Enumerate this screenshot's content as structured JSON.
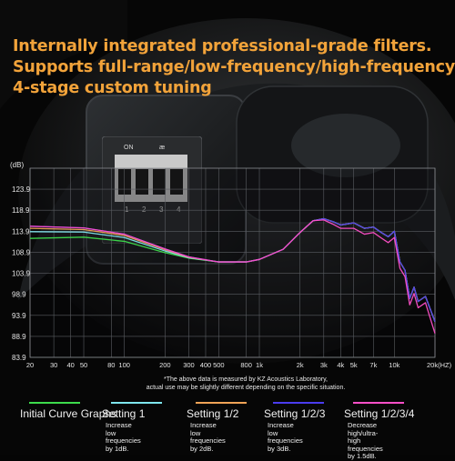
{
  "headline": {
    "line1": "Internally integrated professional-grade filters.",
    "line2": "Supports full-range/low-frequency/high-frequency",
    "line3": "4-stage custom tuning"
  },
  "switch_panel": {
    "on_label": "ON",
    "brand_mark": "æ",
    "numbers": [
      "1",
      "2",
      "3",
      "4"
    ]
  },
  "colors": {
    "headline": "#f2a33a",
    "initial": "#3ddc4c",
    "setting1": "#7ee6ee",
    "setting12": "#f0a356",
    "setting123": "#4a3cf0",
    "setting1234": "#ff4fc8"
  },
  "chart_data": {
    "type": "line",
    "x_scale": "log",
    "xlim": [
      20,
      20000
    ],
    "ylim": [
      83.9,
      128.9
    ],
    "ylabel": "(dB)",
    "y_ticks": [
      "123.9",
      "118.9",
      "113.9",
      "108.9",
      "103.9",
      "98.9",
      "93.9",
      "88.9",
      "83.9"
    ],
    "x_ticks": [
      {
        "v": 20,
        "l": "20"
      },
      {
        "v": 30,
        "l": "30"
      },
      {
        "v": 40,
        "l": "40"
      },
      {
        "v": 50,
        "l": "50"
      },
      {
        "v": 80,
        "l": "80"
      },
      {
        "v": 100,
        "l": "100"
      },
      {
        "v": 200,
        "l": "200"
      },
      {
        "v": 300,
        "l": "300"
      },
      {
        "v": 400,
        "l": "400"
      },
      {
        "v": 500,
        "l": "500"
      },
      {
        "v": 800,
        "l": "800"
      },
      {
        "v": 1000,
        "l": "1k"
      },
      {
        "v": 2000,
        "l": "2k"
      },
      {
        "v": 3000,
        "l": "3k"
      },
      {
        "v": 4000,
        "l": "4k"
      },
      {
        "v": 5000,
        "l": "5k"
      },
      {
        "v": 7000,
        "l": "7k"
      },
      {
        "v": 10000,
        "l": "10k"
      },
      {
        "v": 20000,
        "l": "20k(HZ)"
      }
    ],
    "grid": true,
    "x": [
      20,
      50,
      100,
      200,
      300,
      500,
      800,
      1000,
      1500,
      2000,
      2500,
      3000,
      3500,
      4000,
      5000,
      6000,
      7000,
      8000,
      9000,
      10000,
      11000,
      12000,
      13000,
      14000,
      15000,
      17000,
      20000
    ],
    "series": [
      {
        "name": "Initial Curve Graphs",
        "color": "#3ddc4c",
        "values": [
          112.2,
          112.5,
          111.5,
          108.8,
          107.5,
          106.6,
          106.6,
          107.2,
          109.6,
          113.6,
          116.4,
          116.9,
          116.2,
          115.4,
          115.9,
          114.6,
          114.9,
          113.6,
          112.6,
          113.9,
          106.6,
          104.6,
          97.9,
          100.6,
          97.2,
          98.4,
          92.4
        ]
      },
      {
        "name": "Setting 1",
        "color": "#7ee6ee",
        "values": [
          113.8,
          113.7,
          112.4,
          109.2,
          107.6,
          106.6,
          106.6,
          107.2,
          109.6,
          113.6,
          116.4,
          116.9,
          116.2,
          115.4,
          115.9,
          114.6,
          114.9,
          113.6,
          112.6,
          113.9,
          106.6,
          104.6,
          97.9,
          100.6,
          97.2,
          98.4,
          92.4
        ]
      },
      {
        "name": "Setting 1/2",
        "color": "#f0a356",
        "values": [
          114.6,
          114.3,
          112.9,
          109.5,
          107.7,
          106.6,
          106.6,
          107.2,
          109.6,
          113.6,
          116.4,
          116.9,
          116.2,
          115.4,
          115.9,
          114.6,
          114.9,
          113.6,
          112.6,
          113.9,
          106.6,
          104.6,
          97.9,
          100.6,
          97.2,
          98.4,
          92.4
        ]
      },
      {
        "name": "Setting 1/2/3",
        "color": "#4a3cf0",
        "values": [
          115.1,
          114.7,
          113.2,
          109.7,
          107.8,
          106.6,
          106.6,
          107.2,
          109.6,
          113.6,
          116.4,
          116.9,
          116.2,
          115.4,
          115.9,
          114.6,
          114.9,
          113.6,
          112.6,
          113.9,
          106.6,
          104.6,
          97.9,
          100.6,
          97.2,
          98.4,
          92.4
        ]
      },
      {
        "name": "Setting 1/2/3/4",
        "color": "#ff4fc8",
        "values": [
          115.1,
          114.7,
          113.2,
          109.7,
          107.8,
          106.6,
          106.6,
          107.2,
          109.6,
          113.6,
          116.4,
          116.6,
          115.6,
          114.6,
          114.6,
          113.2,
          113.6,
          112.3,
          111.2,
          112.4,
          105.1,
          103.1,
          96.4,
          99.1,
          95.7,
          96.9,
          89.6
        ]
      }
    ]
  },
  "footnote": {
    "line1": "*The above data is measured by KZ Acoustics Laboratory,",
    "line2": "actual use may be slightly different depending on the specific situation."
  },
  "legend": [
    {
      "name": "Initial Curve Graphs",
      "desc": ""
    },
    {
      "name": "Setting 1",
      "desc": "Increase low\nfrequencies\nby 1dB."
    },
    {
      "name": "Setting 1/2",
      "desc": "Increase low\nfrequencies\nby 2dB."
    },
    {
      "name": "Setting 1/2/3",
      "desc": "Increase low\nfrequencies\nby 3dB."
    },
    {
      "name": "Setting 1/2/3/4",
      "desc": "Decrease high/ultra-high\nfrequencies by 1.5dB."
    }
  ]
}
